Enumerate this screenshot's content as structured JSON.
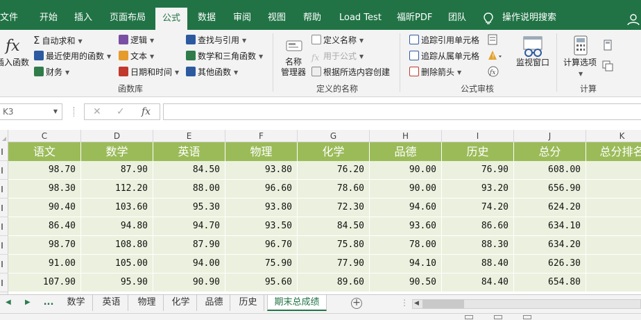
{
  "tabs": [
    {
      "label": "文件"
    },
    {
      "label": "开始"
    },
    {
      "label": "插入"
    },
    {
      "label": "页面布局"
    },
    {
      "label": "公式",
      "active": true
    },
    {
      "label": "数据"
    },
    {
      "label": "审阅"
    },
    {
      "label": "视图"
    },
    {
      "label": "帮助"
    },
    {
      "label": "Load Test"
    },
    {
      "label": "福昕PDF"
    },
    {
      "label": "团队"
    }
  ],
  "tell_me": "操作说明搜索",
  "ribbon": {
    "function_library": {
      "insert_function": "插入函数",
      "autosum": "自动求和",
      "recent": "最近使用的函数",
      "financial": "财务",
      "logical": "逻辑",
      "text": "文本",
      "datetime": "日期和时间",
      "lookup": "查找与引用",
      "math": "数学和三角函数",
      "more": "其他函数",
      "group_label": "函数库"
    },
    "defined_names": {
      "name_manager": "名称\n管理器",
      "define_name": "定义名称",
      "use_in_formula": "用于公式",
      "create_from_selection": "根据所选内容创建",
      "group_label": "定义的名称"
    },
    "auditing": {
      "trace_precedents": "追踪引用单元格",
      "trace_dependents": "追踪从属单元格",
      "remove_arrows": "删除箭头",
      "watch_window": "监视窗口",
      "group_label": "公式审核"
    },
    "calculation": {
      "options": "计算选项",
      "group_label": "计算"
    }
  },
  "formula_bar": {
    "name_box": "K3",
    "formula": ""
  },
  "columns": [
    "C",
    "D",
    "E",
    "F",
    "G",
    "H",
    "I",
    "J",
    "K"
  ],
  "headers": [
    "语文",
    "数学",
    "英语",
    "物理",
    "化学",
    "品德",
    "历史",
    "总分",
    "总分排名"
  ],
  "rows": [
    [
      "98.70",
      "87.90",
      "84.50",
      "93.80",
      "76.20",
      "90.00",
      "76.90",
      "608.00",
      ""
    ],
    [
      "98.30",
      "112.20",
      "88.00",
      "96.60",
      "78.60",
      "90.00",
      "93.20",
      "656.90",
      ""
    ],
    [
      "90.40",
      "103.60",
      "95.30",
      "93.80",
      "72.30",
      "94.60",
      "74.20",
      "624.20",
      ""
    ],
    [
      "86.40",
      "94.80",
      "94.70",
      "93.50",
      "84.50",
      "93.60",
      "86.60",
      "634.10",
      ""
    ],
    [
      "98.70",
      "108.80",
      "87.90",
      "96.70",
      "75.80",
      "78.00",
      "88.30",
      "634.20",
      ""
    ],
    [
      "91.00",
      "105.00",
      "94.00",
      "75.90",
      "77.90",
      "94.10",
      "88.40",
      "626.30",
      ""
    ],
    [
      "107.90",
      "95.90",
      "90.90",
      "95.60",
      "89.60",
      "90.50",
      "84.40",
      "654.80",
      ""
    ]
  ],
  "sheet_tabs": [
    {
      "label": "..."
    },
    {
      "label": "数学"
    },
    {
      "label": "英语"
    },
    {
      "label": "物理"
    },
    {
      "label": "化学"
    },
    {
      "label": "品德"
    },
    {
      "label": "历史"
    },
    {
      "label": "期末总成绩",
      "active": true
    }
  ],
  "colors": {
    "brand": "#217346",
    "header_fill": "#9bbb59",
    "row_fill": "#ebf1de"
  }
}
